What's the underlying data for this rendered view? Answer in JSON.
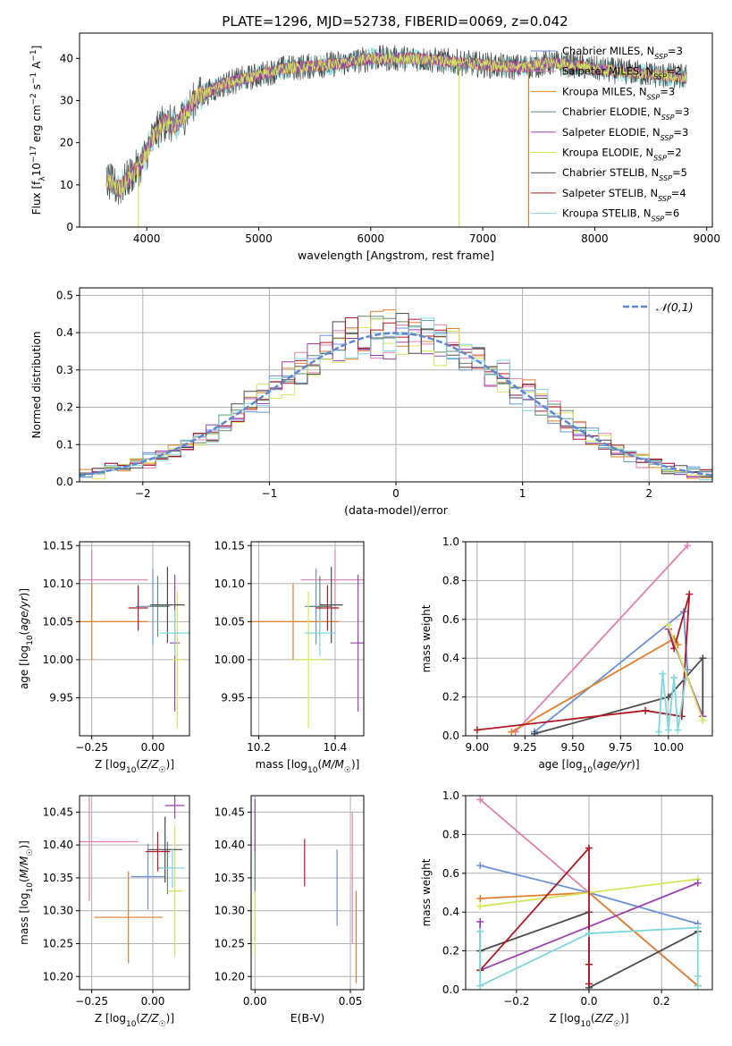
{
  "figure_title": "PLATE=1296, MJD=52738, FIBERID=0069, z=0.042",
  "colors": {
    "Chabrier MILES": "#6b8fd8",
    "Salpeter MILES": "#e07fb0",
    "Kroupa MILES": "#e07f2a",
    "Chabrier ELODIE": "#5f8a6a",
    "Salpeter ELODIE": "#9b3fae",
    "Kroupa ELODIE": "#d4e55a",
    "Chabrier STELIB": "#4a4a4a",
    "Salpeter STELIB": "#b01824",
    "Kroupa STELIB": "#7ed6dd",
    "normal_curve": "#5b86d8",
    "grid": "#b0b0b0"
  },
  "chart_data": [
    {
      "id": "spectrum",
      "type": "line",
      "title": "PLATE=1296, MJD=52738, FIBERID=0069, z=0.042",
      "xlabel": "wavelength [Angstrom, rest frame]",
      "ylabel": "Flux [f_λ 10^-17 erg cm^-2 s^-1 A^-1]",
      "xlim": [
        3400,
        9050
      ],
      "ylim": [
        0,
        46
      ],
      "xticks": [
        4000,
        5000,
        6000,
        7000,
        8000,
        9000
      ],
      "yticks": [
        0,
        10,
        20,
        30,
        40
      ],
      "grid": false,
      "legend_position": "top-right",
      "legend": [
        {
          "name": "Chabrier MILES",
          "suffix": "3"
        },
        {
          "name": "Salpeter MILES",
          "suffix": "2"
        },
        {
          "name": "Kroupa MILES",
          "suffix": "3"
        },
        {
          "name": "Chabrier ELODIE",
          "suffix": "3"
        },
        {
          "name": "Salpeter ELODIE",
          "suffix": "3"
        },
        {
          "name": "Kroupa ELODIE",
          "suffix": "2"
        },
        {
          "name": "Chabrier STELIB",
          "suffix": "5"
        },
        {
          "name": "Salpeter STELIB",
          "suffix": "4"
        },
        {
          "name": "Kroupa STELIB",
          "suffix": "6"
        }
      ],
      "continuum": {
        "x": [
          3640,
          3750,
          3850,
          3950,
          4050,
          4150,
          4250,
          4350,
          4450,
          4550,
          4700,
          4850,
          5000,
          5200,
          5400,
          5600,
          5800,
          6000,
          6200,
          6400,
          6600,
          6800,
          7000,
          7200,
          7400,
          7600,
          7800,
          8000,
          8200,
          8400,
          8600,
          8820
        ],
        "y": [
          11,
          9,
          12,
          15,
          21,
          25,
          24,
          27,
          31,
          32,
          34,
          35,
          36,
          37.5,
          38,
          38.5,
          39,
          40,
          40,
          40,
          39.5,
          39,
          38.5,
          38,
          38,
          39,
          38.5,
          37.5,
          37,
          36.5,
          36,
          35.5
        ]
      },
      "dropouts": [
        {
          "x": 3925,
          "y": 0,
          "series": "Kroupa ELODIE"
        },
        {
          "x": 6790,
          "y": 0,
          "series": "Kroupa ELODIE"
        },
        {
          "x": 7410,
          "y": 0,
          "series": "Kroupa MILES"
        }
      ]
    },
    {
      "id": "residuals",
      "type": "line",
      "xlabel": "(data-model)/error",
      "ylabel": "Normed distribution",
      "xlim": [
        -2.5,
        2.5
      ],
      "ylim": [
        0,
        0.52
      ],
      "xticks": [
        -2,
        -1,
        0,
        1,
        2
      ],
      "yticks": [
        0.0,
        0.1,
        0.2,
        0.3,
        0.4,
        0.5
      ],
      "grid": true,
      "legend_position": "top-right",
      "legend_label": "𝒩(0,1)",
      "bin_width": 0.1
    },
    {
      "id": "age_vs_Z",
      "type": "scatter",
      "xlabel": "Z [log10(Z/Z☉)]",
      "ylabel": "age [log10(age/yr)]",
      "xlim": [
        -0.3,
        0.15
      ],
      "ylim": [
        9.9,
        10.155
      ],
      "xticks": [
        -0.25,
        0.0
      ],
      "yticks": [
        9.95,
        10.0,
        10.05,
        10.1,
        10.15
      ],
      "grid": true,
      "points": [
        {
          "series": "Chabrier MILES",
          "x": 0.0,
          "xerr": 0.07,
          "y": 10.07,
          "yerr": 0.05
        },
        {
          "series": "Salpeter MILES",
          "x": -0.25,
          "xerr": 0.23,
          "y": 10.105,
          "yerr": 0.04
        },
        {
          "series": "Kroupa MILES",
          "x": -0.25,
          "xerr": 0.23,
          "y": 10.05,
          "yerr": 0.05
        },
        {
          "series": "Chabrier ELODIE",
          "x": 0.02,
          "xerr": 0.04,
          "y": 10.07,
          "yerr": 0.04
        },
        {
          "series": "Salpeter ELODIE",
          "x": 0.09,
          "xerr": 0.02,
          "y": 10.022,
          "yerr": 0.09
        },
        {
          "series": "Kroupa ELODIE",
          "x": 0.1,
          "xerr": 0.02,
          "y": 10.0,
          "yerr": 0.09
        },
        {
          "series": "Chabrier STELIB",
          "x": 0.06,
          "xerr": 0.07,
          "y": 10.072,
          "yerr": 0.05
        },
        {
          "series": "Salpeter STELIB",
          "x": -0.06,
          "xerr": 0.04,
          "y": 10.068,
          "yerr": 0.03
        },
        {
          "series": "Kroupa STELIB",
          "x": 0.09,
          "xerr": 0.06,
          "y": 10.035,
          "yerr": 0.03
        }
      ]
    },
    {
      "id": "age_vs_mass",
      "type": "scatter",
      "xlabel": "mass [log10(M/M☉)]",
      "ylabel": "",
      "xlim": [
        10.18,
        10.475
      ],
      "ylim": [
        9.9,
        10.155
      ],
      "xticks": [
        10.2,
        10.4
      ],
      "yticks": [
        9.95,
        10.0,
        10.05,
        10.1,
        10.15
      ],
      "grid": true,
      "points": [
        {
          "series": "Chabrier MILES",
          "x": 10.35,
          "xerr": 0.03,
          "y": 10.07,
          "yerr": 0.05
        },
        {
          "series": "Salpeter MILES",
          "x": 10.4,
          "xerr": 0.09,
          "y": 10.105,
          "yerr": 0.04
        },
        {
          "series": "Kroupa MILES",
          "x": 10.29,
          "xerr": 0.12,
          "y": 10.05,
          "yerr": 0.05
        },
        {
          "series": "Chabrier ELODIE",
          "x": 10.36,
          "xerr": 0.03,
          "y": 10.07,
          "yerr": 0.04
        },
        {
          "series": "Salpeter ELODIE",
          "x": 10.46,
          "xerr": 0.02,
          "y": 10.022,
          "yerr": 0.09
        },
        {
          "series": "Kroupa ELODIE",
          "x": 10.33,
          "xerr": 0.04,
          "y": 10.0,
          "yerr": 0.09
        },
        {
          "series": "Chabrier STELIB",
          "x": 10.39,
          "xerr": 0.03,
          "y": 10.072,
          "yerr": 0.05
        },
        {
          "series": "Salpeter STELIB",
          "x": 10.38,
          "xerr": 0.03,
          "y": 10.068,
          "yerr": 0.03
        },
        {
          "series": "Kroupa STELIB",
          "x": 10.36,
          "xerr": 0.04,
          "y": 10.035,
          "yerr": 0.03
        }
      ]
    },
    {
      "id": "weight_vs_age",
      "type": "line",
      "xlabel": "age [log10(age/yr)]",
      "ylabel": "mass weight",
      "xlim": [
        8.94,
        10.23
      ],
      "ylim": [
        0,
        1.0
      ],
      "xticks": [
        9.0,
        9.25,
        9.5,
        9.75,
        10.0
      ],
      "yticks": [
        0.0,
        0.2,
        0.4,
        0.6,
        0.8,
        1.0
      ],
      "grid": true,
      "series": [
        {
          "series": "Salpeter MILES",
          "x": [
            9.2,
            10.1
          ],
          "y": [
            0.02,
            0.98
          ]
        },
        {
          "series": "Chabrier MILES",
          "x": [
            9.3,
            10.08,
            10.1
          ],
          "y": [
            0.02,
            0.64,
            0.34
          ]
        },
        {
          "series": "Kroupa MILES",
          "x": [
            9.18,
            10.03,
            10.05
          ],
          "y": [
            0.02,
            0.5,
            0.47
          ]
        },
        {
          "series": "Chabrier STELIB",
          "x": [
            9.3,
            10.0,
            10.18,
            10.18
          ],
          "y": [
            0.01,
            0.2,
            0.4,
            0.1
          ]
        },
        {
          "series": "Salpeter STELIB",
          "x": [
            9.0,
            9.88,
            10.07,
            10.11,
            10.03,
            10.0
          ],
          "y": [
            0.03,
            0.13,
            0.1,
            0.73,
            0.45,
            0.55
          ]
        },
        {
          "series": "Kroupa STELIB",
          "x": [
            9.95,
            9.97,
            10.0,
            10.03,
            10.05,
            10.09
          ],
          "y": [
            0.02,
            0.32,
            0.03,
            0.3,
            0.03,
            0.29
          ]
        },
        {
          "series": "Salpeter ELODIE",
          "x": [
            10.0,
            10.18
          ],
          "y": [
            0.55,
            0.1
          ]
        },
        {
          "series": "Kroupa ELODIE",
          "x": [
            10.0,
            10.18
          ],
          "y": [
            0.57,
            0.08
          ]
        }
      ]
    },
    {
      "id": "mass_vs_Z",
      "type": "scatter",
      "xlabel": "Z [log10(Z/Z☉)]",
      "ylabel": "mass [log10(M/M☉)]",
      "xlim": [
        -0.3,
        0.15
      ],
      "ylim": [
        10.18,
        10.475
      ],
      "xticks": [
        -0.25,
        0.0
      ],
      "yticks": [
        10.2,
        10.25,
        10.3,
        10.35,
        10.4,
        10.45
      ],
      "grid": true,
      "points": [
        {
          "series": "Chabrier MILES",
          "x": -0.02,
          "xerr": 0.07,
          "y": 10.352,
          "yerr": 0.05
        },
        {
          "series": "Salpeter MILES",
          "x": -0.26,
          "xerr": 0.2,
          "y": 10.405,
          "yerr": 0.09
        },
        {
          "series": "Kroupa MILES",
          "x": -0.1,
          "xerr": 0.14,
          "y": 10.29,
          "yerr": 0.07
        },
        {
          "series": "Chabrier ELODIE",
          "x": 0.06,
          "xerr": 0.04,
          "y": 10.365,
          "yerr": 0.04
        },
        {
          "series": "Salpeter ELODIE",
          "x": 0.09,
          "xerr": 0.04,
          "y": 10.46,
          "yerr": 0.02
        },
        {
          "series": "Kroupa ELODIE",
          "x": 0.09,
          "xerr": 0.03,
          "y": 10.33,
          "yerr": 0.1
        },
        {
          "series": "Chabrier STELIB",
          "x": 0.05,
          "xerr": 0.07,
          "y": 10.393,
          "yerr": 0.05
        },
        {
          "series": "Salpeter STELIB",
          "x": 0.02,
          "xerr": 0.05,
          "y": 10.39,
          "yerr": 0.03
        },
        {
          "series": "Kroupa STELIB",
          "x": 0.08,
          "xerr": 0.05,
          "y": 10.365,
          "yerr": 0.03
        }
      ]
    },
    {
      "id": "mass_vs_ebv",
      "type": "scatter",
      "xlabel": "E(B-V)",
      "ylabel": "",
      "xlim": [
        -0.002,
        0.057
      ],
      "ylim": [
        10.18,
        10.475
      ],
      "xticks": [
        0.0,
        0.05
      ],
      "yticks": [
        10.2,
        10.25,
        10.3,
        10.35,
        10.4,
        10.45
      ],
      "grid": true,
      "points": [
        {
          "series": "Chabrier MILES",
          "x": 0.043,
          "y": 10.335,
          "yerr": 0.058
        },
        {
          "series": "Salpeter MILES",
          "x": 0.051,
          "y": 10.35,
          "yerr": 0.1
        },
        {
          "series": "Kroupa MILES",
          "x": 0.053,
          "y": 10.26,
          "yerr": 0.07
        },
        {
          "series": "Chabrier ELODIE",
          "x": 0.0,
          "y": 10.365,
          "yerr": 0.04
        },
        {
          "series": "Salpeter ELODIE",
          "x": 0.0,
          "y": 10.43,
          "yerr": 0.04
        },
        {
          "series": "Kroupa ELODIE",
          "x": 0.0,
          "y": 10.28,
          "yerr": 0.05
        },
        {
          "series": "Salpeter STELIB",
          "x": 0.026,
          "y": 10.373,
          "yerr": 0.036
        }
      ]
    },
    {
      "id": "weight_vs_Z",
      "type": "line",
      "xlabel": "Z [log10(Z/Z☉)]",
      "ylabel": "mass weight",
      "xlim": [
        -0.34,
        0.34
      ],
      "ylim": [
        0,
        1.0
      ],
      "xticks": [
        -0.2,
        0.0,
        0.2
      ],
      "yticks": [
        0.0,
        0.2,
        0.4,
        0.6,
        0.8,
        1.0
      ],
      "grid": true,
      "series": [
        {
          "series": "Salpeter MILES",
          "x": [
            -0.3,
            0.0,
            0.3
          ],
          "y": [
            0.98,
            0.5,
            0.02
          ]
        },
        {
          "series": "Chabrier MILES",
          "x": [
            -0.3,
            0.0,
            0.3
          ],
          "y": [
            0.64,
            0.5,
            0.34
          ]
        },
        {
          "series": "Kroupa MILES",
          "x": [
            -0.3,
            0.0,
            0.3
          ],
          "y": [
            0.47,
            0.5,
            0.02
          ]
        },
        {
          "series": "Kroupa ELODIE",
          "x": [
            -0.3,
            0.3
          ],
          "y": [
            0.43,
            0.57
          ]
        },
        {
          "series": "Salpeter ELODIE",
          "x": [
            -0.3,
            -0.3,
            0.3
          ],
          "y": [
            0.35,
            0.1,
            0.55
          ]
        },
        {
          "series": "Chabrier STELIB",
          "x": [
            -0.3,
            0.0,
            0.0,
            0.3
          ],
          "y": [
            0.2,
            0.4,
            0.01,
            0.3
          ]
        },
        {
          "series": "Salpeter STELIB",
          "x": [
            -0.3,
            0.0,
            0.0,
            0.0
          ],
          "y": [
            0.1,
            0.73,
            0.13,
            0.03
          ]
        },
        {
          "series": "Kroupa STELIB",
          "x": [
            -0.3,
            -0.3,
            0.0,
            0.3,
            0.3,
            0.3
          ],
          "y": [
            0.3,
            0.02,
            0.29,
            0.32,
            0.07,
            0.02
          ]
        }
      ]
    }
  ]
}
